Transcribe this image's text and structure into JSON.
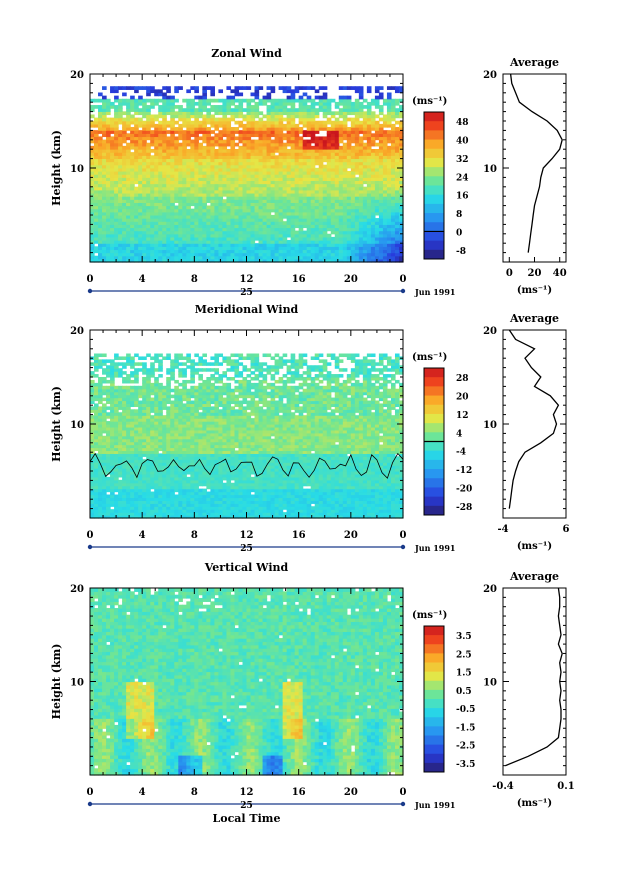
{
  "chart_data": [
    {
      "type": "heatmap",
      "title": "Zonal Wind",
      "ylabel": "Height (km)",
      "xticks": [
        "0",
        "4",
        "8",
        "12",
        "16",
        "20",
        "0"
      ],
      "date_label": "25",
      "date_right": "Jun 1991",
      "colorbar": {
        "unit": "(ms⁻¹)",
        "labels": [
          "48",
          "40",
          "32",
          "24",
          "16",
          "8",
          "0",
          "-8"
        ],
        "vmin": -12,
        "vmax": 52
      },
      "ylim": [
        0,
        20
      ],
      "yticks": [
        "20",
        "10"
      ],
      "average": {
        "title": "Average",
        "xlim": [
          -5,
          45
        ],
        "xticks": [
          "0",
          "20",
          "40"
        ],
        "xlabel": "(ms⁻¹)",
        "profile_h": [
          1,
          2,
          3,
          4,
          5,
          6,
          7,
          8,
          9,
          10,
          11,
          12,
          13,
          14,
          15,
          16,
          17,
          18,
          19,
          20
        ],
        "profile_v": [
          15,
          16,
          17,
          18,
          19,
          20,
          22,
          24,
          25,
          27,
          34,
          40,
          42,
          38,
          30,
          18,
          8,
          5,
          2,
          1
        ]
      }
    },
    {
      "type": "heatmap",
      "title": "Meridional Wind",
      "ylabel": "Height (km)",
      "xticks": [
        "0",
        "4",
        "8",
        "12",
        "16",
        "20",
        "0"
      ],
      "date_label": "25",
      "date_right": "Jun 1991",
      "colorbar": {
        "unit": "(ms⁻¹)",
        "labels": [
          "28",
          "20",
          "12",
          "4",
          "-4",
          "-12",
          "-20",
          "-28"
        ],
        "vmin": -32,
        "vmax": 32
      },
      "ylim": [
        0,
        20
      ],
      "yticks": [
        "20",
        "10"
      ],
      "average": {
        "title": "Average",
        "xlim": [
          -4,
          6
        ],
        "xticks": [
          "-4",
          "6"
        ],
        "xlabel": "(ms⁻¹)",
        "profile_h": [
          1,
          2,
          3,
          4,
          5,
          6,
          7,
          8,
          9,
          10,
          11,
          12,
          13,
          14,
          15,
          16,
          17,
          18,
          19,
          20
        ],
        "profile_v": [
          -3.0,
          -2.8,
          -2.6,
          -2.4,
          -2.0,
          -1.5,
          -0.5,
          2.0,
          4.0,
          4.5,
          4.0,
          4.8,
          3.5,
          1.0,
          2.0,
          0.5,
          -0.5,
          1.0,
          -2.0,
          -3.0
        ]
      }
    },
    {
      "type": "heatmap",
      "title": "Vertical Wind",
      "ylabel": "Height (km)",
      "xticks": [
        "0",
        "4",
        "8",
        "12",
        "16",
        "20",
        "0"
      ],
      "date_label": "25",
      "date_right": "Jun 1991",
      "xlabel": "Local Time",
      "colorbar": {
        "unit": "(ms⁻¹)",
        "labels": [
          "3.5",
          "2.5",
          "1.5",
          "0.5",
          "-0.5",
          "-1.5",
          "-2.5",
          "-3.5"
        ],
        "vmin": -4,
        "vmax": 4
      },
      "ylim": [
        0,
        20
      ],
      "yticks": [
        "20",
        "10"
      ],
      "average": {
        "title": "Average",
        "xlim": [
          -0.4,
          0.1
        ],
        "xticks": [
          "-0.4",
          "0.1"
        ],
        "xlabel": "(ms⁻¹)",
        "profile_h": [
          1,
          2,
          3,
          4,
          5,
          6,
          7,
          8,
          9,
          10,
          11,
          12,
          13,
          14,
          15,
          16,
          17,
          18,
          19,
          20
        ],
        "profile_v": [
          -0.38,
          -0.2,
          -0.05,
          0.04,
          0.05,
          0.06,
          0.06,
          0.05,
          0.06,
          0.05,
          0.06,
          0.05,
          0.07,
          0.04,
          0.06,
          0.05,
          0.04,
          0.05,
          0.05,
          0.04
        ]
      }
    }
  ]
}
